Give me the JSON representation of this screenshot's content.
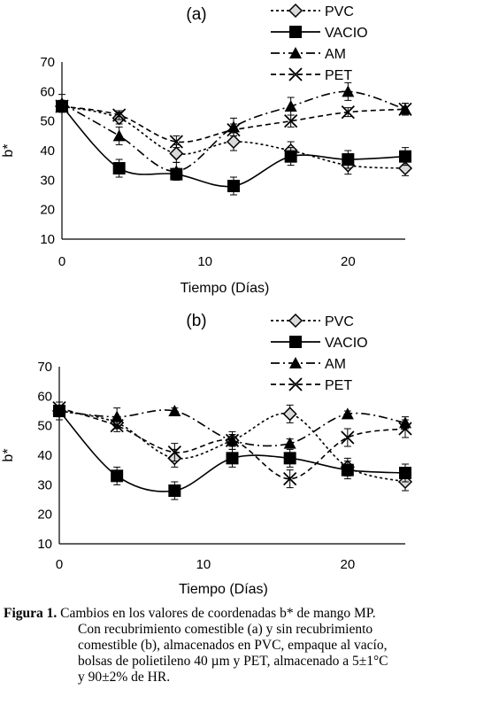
{
  "chart_data": [
    {
      "type": "line",
      "panel_label": "(a)",
      "xlabel": "Tiempo (Días)",
      "ylabel": "b*",
      "xlim": [
        0,
        24
      ],
      "ylim": [
        10,
        70
      ],
      "xticks": [
        0,
        10,
        20
      ],
      "yticks": [
        10,
        20,
        30,
        40,
        50,
        60,
        70
      ],
      "grid": false,
      "legend": "top-right",
      "x": [
        0,
        4,
        8,
        12,
        16,
        20,
        24
      ],
      "series": [
        {
          "name": "PVC",
          "style": "dotted",
          "marker": "diamond-open",
          "values": [
            55,
            51,
            39,
            43,
            40,
            35,
            34
          ],
          "errors": [
            2,
            2,
            3,
            3,
            3,
            3,
            2.5
          ]
        },
        {
          "name": "VACIO",
          "style": "solid",
          "marker": "square",
          "values": [
            55,
            34,
            32,
            28,
            38,
            37,
            38
          ],
          "errors": [
            2,
            3,
            2,
            3,
            3,
            3,
            3
          ]
        },
        {
          "name": "AM",
          "style": "dashdot",
          "marker": "triangle",
          "values": [
            56,
            45,
            33,
            48,
            55,
            60,
            54
          ],
          "errors": [
            3,
            3,
            3,
            3,
            3,
            3,
            2
          ]
        },
        {
          "name": "PET",
          "style": "dashed",
          "marker": "x",
          "values": [
            55,
            52,
            43,
            47,
            50,
            53,
            54
          ],
          "errors": [
            2,
            1.5,
            2,
            2,
            2,
            1.5,
            2
          ]
        }
      ]
    },
    {
      "type": "line",
      "panel_label": "(b)",
      "xlabel": "Tiempo (Días)",
      "ylabel": "b*",
      "xlim": [
        0,
        24
      ],
      "ylim": [
        10,
        70
      ],
      "xticks": [
        0,
        10,
        20
      ],
      "yticks": [
        10,
        20,
        30,
        40,
        50,
        60,
        70
      ],
      "grid": false,
      "legend": "top-right",
      "x": [
        0,
        4,
        8,
        12,
        16,
        20,
        24
      ],
      "series": [
        {
          "name": "PVC",
          "style": "dotted",
          "marker": "diamond-open",
          "values": [
            55,
            51,
            39,
            45,
            54,
            36,
            31
          ],
          "errors": [
            3,
            2,
            3,
            2,
            3,
            3,
            3
          ]
        },
        {
          "name": "VACIO",
          "style": "solid",
          "marker": "square",
          "values": [
            55,
            33,
            28,
            39,
            39,
            35,
            34
          ],
          "errors": [
            2,
            3,
            3,
            3,
            3,
            3,
            3
          ]
        },
        {
          "name": "AM",
          "style": "dashdot",
          "marker": "triangle",
          "values": [
            55,
            53,
            55,
            45,
            44,
            54,
            51
          ],
          "errors": [
            3,
            3,
            1,
            3,
            1.5,
            1,
            2
          ]
        },
        {
          "name": "PET",
          "style": "dashed",
          "marker": "x",
          "values": [
            56,
            50,
            41,
            45,
            32,
            46,
            49
          ],
          "errors": [
            2,
            2,
            3,
            2,
            3,
            3,
            3
          ]
        }
      ]
    }
  ],
  "caption": {
    "lead": "Figura 1.",
    "lines": [
      "Cambios en los valores de coordenadas b* de mango MP.",
      "Con recubrimiento comestible (a) y sin recubrimiento",
      "comestible (b), almacenados en PVC, empaque al vacío,",
      "bolsas de polietileno 40 µm y PET, almacenado a 5±1°C",
      "y 90±2% de HR."
    ]
  }
}
